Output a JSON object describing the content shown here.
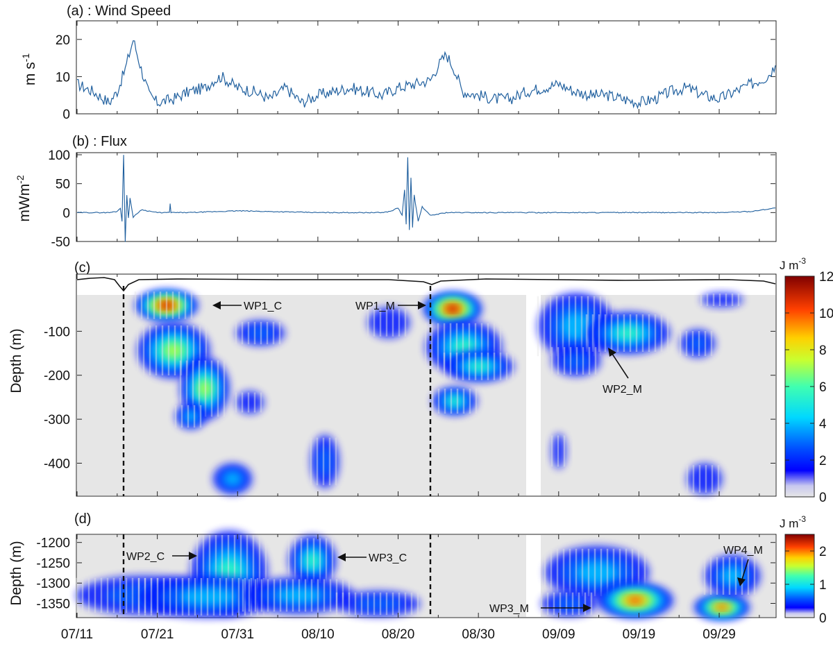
{
  "chart_data": [
    {
      "type": "line",
      "panel_label": "(a) : Wind Speed",
      "ylabel": "m s",
      "ylabel_exp": "-1",
      "ylim": [
        0,
        25
      ],
      "yticks": [
        0,
        10,
        20
      ],
      "x_range_days": [
        0,
        87
      ],
      "series_color": "#1f5f9e",
      "series": [
        {
          "x": [
            0,
            2,
            4,
            5,
            6,
            7,
            8,
            9,
            10,
            12,
            14,
            16,
            17,
            18,
            20,
            22,
            24,
            26,
            28,
            30,
            32,
            34,
            36,
            38,
            40,
            42,
            44,
            45,
            46,
            47,
            48,
            50,
            52,
            54,
            56,
            58,
            60,
            62,
            64,
            66,
            68,
            70,
            72,
            74,
            76,
            78,
            80,
            82,
            84,
            86,
            87
          ],
          "values": [
            8,
            6,
            3,
            6,
            12,
            20,
            12,
            5,
            3,
            4,
            6,
            7,
            9,
            10,
            7,
            6,
            4,
            7,
            3,
            5,
            6,
            7,
            6,
            5,
            7,
            8,
            9,
            13,
            16,
            12,
            6,
            5,
            4,
            4,
            6,
            7,
            8,
            6,
            5,
            5,
            4,
            3,
            4,
            6,
            7,
            5,
            4,
            6,
            8,
            10,
            13
          ]
        }
      ]
    },
    {
      "type": "line",
      "panel_label": "(b) : Flux",
      "ylabel": "mWm",
      "ylabel_exp": "-2",
      "ylim": [
        -50,
        100
      ],
      "yticks": [
        -50,
        0,
        50,
        100
      ],
      "series": [
        {
          "x": [
            0,
            4,
            5,
            5.4,
            5.6,
            5.8,
            6,
            6.2,
            6.4,
            6.6,
            7,
            8,
            10,
            11.5,
            11.6,
            11.7,
            14,
            20,
            30,
            38,
            39,
            40,
            40.5,
            40.8,
            41,
            41.2,
            41.4,
            41.6,
            41.8,
            42,
            42.5,
            43,
            44,
            46,
            60,
            70,
            80,
            84,
            86,
            87
          ],
          "values": [
            0,
            0,
            2,
            8,
            -15,
            100,
            -50,
            30,
            -10,
            25,
            -8,
            5,
            0,
            0,
            15,
            0,
            0,
            3,
            0,
            0,
            2,
            8,
            -5,
            40,
            -20,
            95,
            -30,
            60,
            -25,
            30,
            -15,
            10,
            -5,
            0,
            0,
            0,
            0,
            2,
            6,
            8
          ]
        }
      ]
    },
    {
      "type": "heatmap",
      "panel_label": "(c)",
      "ylabel": "Depth (m)",
      "yticks": [
        -100,
        -200,
        -300,
        -400
      ],
      "ylim": [
        -475,
        30
      ],
      "colorbar_unit": "J m",
      "colorbar_exp": "-3",
      "colorbar_ticks": [
        0,
        2,
        4,
        6,
        8,
        10,
        12
      ],
      "colorbar_range": [
        0,
        12
      ],
      "annotations": [
        "WP1_C",
        "WP1_M",
        "WP2_M"
      ]
    },
    {
      "type": "heatmap",
      "panel_label": "(d)",
      "ylabel": "Depth (m)",
      "yticks": [
        -1200,
        -1250,
        -1300,
        -1350
      ],
      "ylim": [
        -1385,
        -1180
      ],
      "colorbar_unit": "J m",
      "colorbar_exp": "-3",
      "colorbar_ticks": [
        0,
        1,
        2
      ],
      "colorbar_range": [
        0,
        2.5
      ],
      "annotations": [
        "WP2_C",
        "WP3_C",
        "WP3_M",
        "WP4_M"
      ]
    }
  ],
  "xaxis": {
    "tick_labels": [
      "07/11",
      "07/21",
      "07/31",
      "08/10",
      "08/20",
      "08/30",
      "09/09",
      "09/19",
      "09/29"
    ],
    "tick_days": [
      0,
      10,
      20,
      30,
      40,
      50,
      60,
      70,
      80
    ]
  },
  "events_days": [
    5,
    44
  ]
}
